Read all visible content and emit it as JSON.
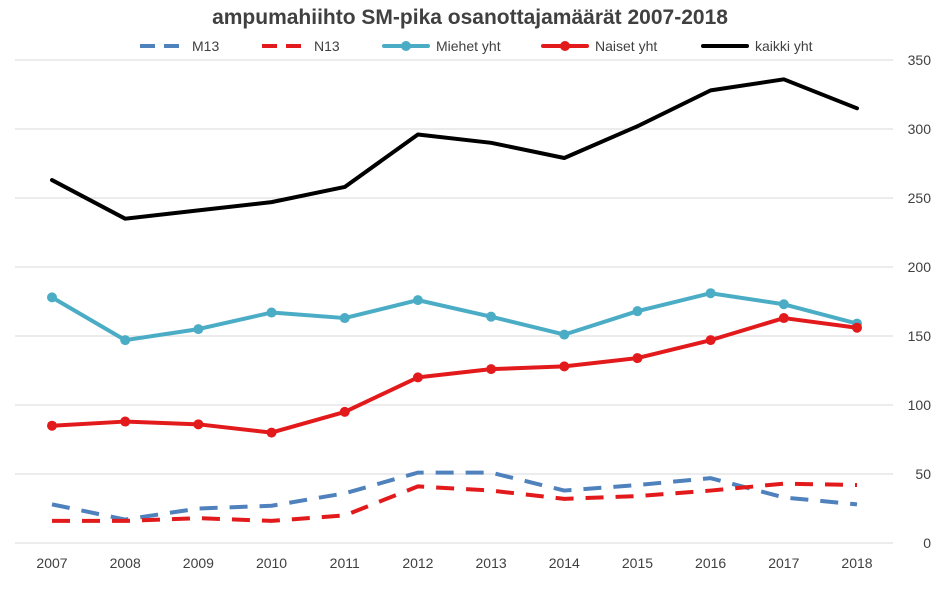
{
  "chart_data": {
    "type": "line",
    "title": "ampumahiihto SM-pika osanottajamäärät 2007-2018",
    "xlabel": "",
    "ylabel": "",
    "categories": [
      "2007",
      "2008",
      "2009",
      "2010",
      "2011",
      "2012",
      "2013",
      "2014",
      "2015",
      "2016",
      "2017",
      "2018"
    ],
    "ylim": [
      0,
      350
    ],
    "yticks": [
      0,
      50,
      100,
      150,
      200,
      250,
      300,
      350
    ],
    "y_axis_side": "right",
    "grid": true,
    "legend_position": "top",
    "series": [
      {
        "name": "M13",
        "style": "dashed",
        "markers": false,
        "color": "#4f81bd",
        "values": [
          28,
          17,
          25,
          27,
          36,
          51,
          51,
          38,
          42,
          47,
          33,
          28
        ]
      },
      {
        "name": "N13",
        "style": "dashed",
        "markers": false,
        "color": "#e31a1c",
        "values": [
          16,
          16,
          18,
          16,
          20,
          41,
          38,
          32,
          34,
          38,
          43,
          42
        ]
      },
      {
        "name": "Miehet yht",
        "style": "solid",
        "markers": true,
        "color": "#4bacc6",
        "values": [
          178,
          147,
          155,
          167,
          163,
          176,
          164,
          151,
          168,
          181,
          173,
          159
        ]
      },
      {
        "name": "Naiset yht",
        "style": "solid",
        "markers": true,
        "color": "#e31a1c",
        "values": [
          85,
          88,
          86,
          80,
          95,
          120,
          126,
          128,
          134,
          147,
          163,
          156
        ]
      },
      {
        "name": "kaikki yht",
        "style": "solid",
        "markers": false,
        "color": "#000000",
        "values": [
          263,
          235,
          241,
          247,
          258,
          296,
          290,
          279,
          302,
          328,
          336,
          315
        ]
      }
    ]
  }
}
